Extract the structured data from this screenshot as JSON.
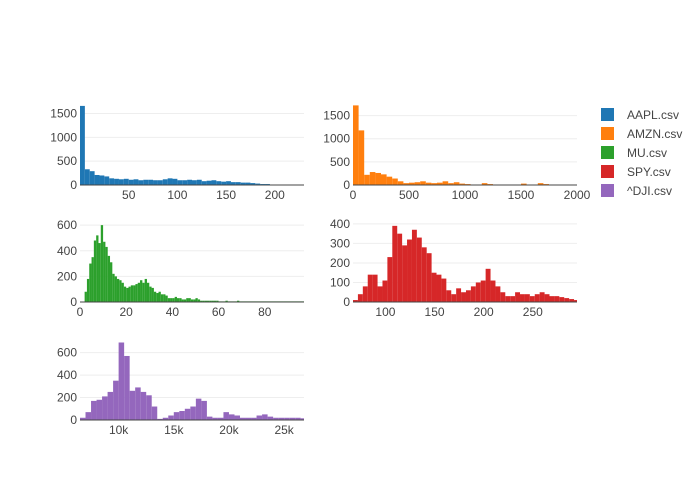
{
  "chart_data": {
    "type": "histogram",
    "legend": {
      "position": "right",
      "entries": [
        {
          "name": "AAPL.csv",
          "color": "#1f77b4"
        },
        {
          "name": "AMZN.csv",
          "color": "#ff7f0e"
        },
        {
          "name": "MU.csv",
          "color": "#2ca02c"
        },
        {
          "name": "SPY.csv",
          "color": "#d62728"
        },
        {
          "name": "^DJI.csv",
          "color": "#9467bd"
        }
      ]
    },
    "grid": true,
    "panels": [
      {
        "series": "AAPL.csv",
        "color": "#1f77b4",
        "xlim": [
          0,
          230
        ],
        "ylim": [
          0,
          1700
        ],
        "xticks": [
          50,
          100,
          150,
          200
        ],
        "xtick_labels": [
          "50",
          "100",
          "150",
          "200"
        ],
        "yticks": [
          0,
          500,
          1000,
          1500
        ],
        "ytick_labels": [
          "0",
          "500",
          "1000",
          "1500"
        ],
        "bin_start": 0,
        "bin_width": 5,
        "counts": [
          1660,
          330,
          290,
          210,
          200,
          180,
          140,
          130,
          120,
          130,
          110,
          120,
          100,
          110,
          110,
          100,
          100,
          120,
          140,
          130,
          100,
          100,
          110,
          100,
          110,
          80,
          90,
          100,
          80,
          70,
          80,
          60,
          60,
          50,
          50,
          40,
          30,
          20,
          20,
          10,
          10,
          5,
          5,
          0,
          0,
          0
        ]
      },
      {
        "series": "AMZN.csv",
        "color": "#ff7f0e",
        "xlim": [
          0,
          2000
        ],
        "ylim": [
          0,
          1750
        ],
        "xticks": [
          0,
          500,
          1000,
          1500,
          2000
        ],
        "xtick_labels": [
          "0",
          "500",
          "1000",
          "1500",
          "2000"
        ],
        "yticks": [
          0,
          500,
          1000,
          1500
        ],
        "ytick_labels": [
          "0",
          "500",
          "1000",
          "1500"
        ],
        "bin_start": 0,
        "bin_width": 50,
        "counts": [
          1720,
          1180,
          220,
          280,
          260,
          230,
          180,
          140,
          80,
          40,
          50,
          60,
          80,
          50,
          40,
          50,
          80,
          40,
          60,
          30,
          20,
          10,
          10,
          40,
          20,
          10,
          10,
          5,
          5,
          5,
          30,
          10,
          5,
          40,
          20,
          5,
          5,
          0,
          0,
          0
        ]
      },
      {
        "series": "MU.csv",
        "color": "#2ca02c",
        "xlim": [
          0,
          97
        ],
        "ylim": [
          0,
          640
        ],
        "xticks": [
          0,
          20,
          40,
          60,
          80
        ],
        "xtick_labels": [
          "0",
          "20",
          "40",
          "60",
          "80"
        ],
        "yticks": [
          0,
          200,
          400,
          600
        ],
        "ytick_labels": [
          "0",
          "200",
          "400",
          "600"
        ],
        "bin_start": 2,
        "bin_width": 1,
        "counts": [
          80,
          180,
          300,
          350,
          480,
          520,
          460,
          600,
          470,
          430,
          360,
          310,
          220,
          200,
          180,
          170,
          150,
          120,
          110,
          120,
          130,
          130,
          140,
          150,
          170,
          150,
          180,
          150,
          120,
          110,
          80,
          70,
          80,
          60,
          60,
          50,
          30,
          30,
          30,
          40,
          30,
          30,
          20,
          20,
          30,
          30,
          20,
          20,
          30,
          20,
          10,
          10,
          10,
          10,
          10,
          10,
          10,
          10,
          5,
          5,
          5,
          10,
          5,
          5,
          5,
          5,
          10,
          5,
          5,
          5,
          5,
          5,
          5,
          5,
          5,
          5,
          5,
          5,
          5,
          5,
          5,
          5,
          5,
          5,
          5,
          5,
          5,
          5,
          5,
          5,
          5,
          5,
          5,
          5,
          5
        ]
      },
      {
        "series": "SPY.csv",
        "color": "#d62728",
        "xlim": [
          67,
          295
        ],
        "ylim": [
          0,
          420
        ],
        "xticks": [
          100,
          150,
          200,
          250
        ],
        "xtick_labels": [
          "100",
          "150",
          "200",
          "250"
        ],
        "yticks": [
          0,
          100,
          200,
          300,
          400
        ],
        "ytick_labels": [
          "0",
          "100",
          "200",
          "300",
          "400"
        ],
        "bin_start": 67,
        "bin_width": 5,
        "counts": [
          10,
          40,
          80,
          140,
          140,
          80,
          110,
          230,
          390,
          350,
          290,
          320,
          370,
          330,
          280,
          250,
          150,
          140,
          120,
          60,
          40,
          70,
          50,
          60,
          80,
          100,
          110,
          170,
          110,
          80,
          50,
          30,
          30,
          50,
          40,
          40,
          30,
          40,
          50,
          40,
          30,
          30,
          25,
          20,
          15,
          10
        ]
      },
      {
        "series": "^DJI.csv",
        "color": "#9467bd",
        "xlim": [
          6500,
          26800
        ],
        "ylim": [
          0,
          730
        ],
        "xticks": [
          10000,
          15000,
          20000,
          25000
        ],
        "xtick_labels": [
          "10k",
          "15k",
          "20k",
          "25k"
        ],
        "yticks": [
          0,
          200,
          400,
          600
        ],
        "ytick_labels": [
          "0",
          "200",
          "400",
          "600"
        ],
        "bin_start": 6500,
        "bin_width": 500,
        "counts": [
          20,
          70,
          170,
          180,
          210,
          250,
          350,
          690,
          570,
          260,
          290,
          250,
          220,
          120,
          10,
          20,
          40,
          70,
          80,
          100,
          120,
          190,
          170,
          30,
          20,
          20,
          70,
          50,
          40,
          20,
          20,
          20,
          40,
          50,
          30,
          20,
          20,
          20,
          20,
          20,
          15
        ]
      }
    ]
  }
}
